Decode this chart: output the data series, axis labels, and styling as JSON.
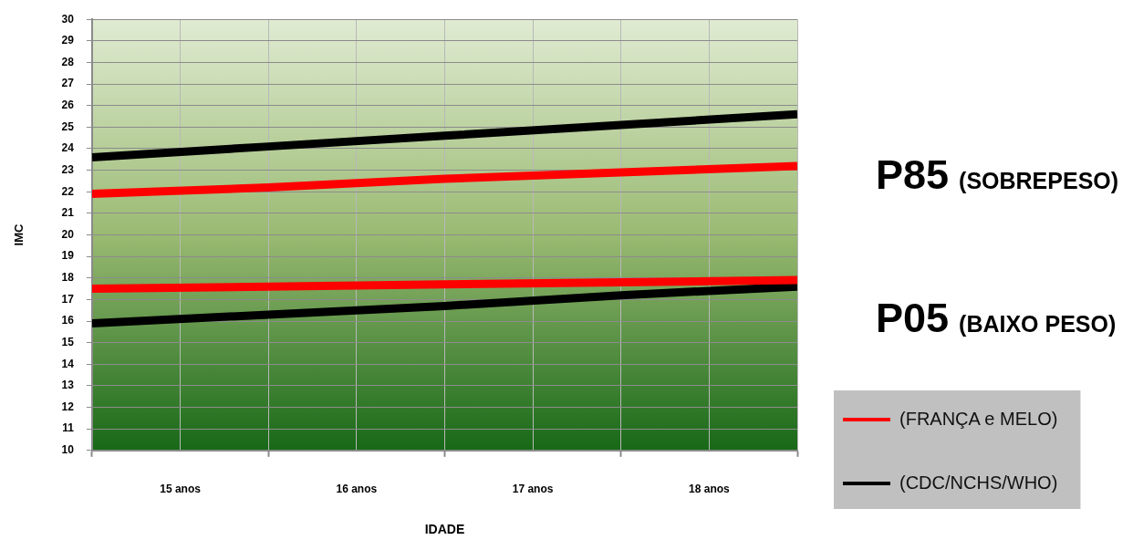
{
  "chart_data": {
    "type": "line",
    "xlabel": "IDADE",
    "ylabel": "IMC",
    "x": [
      14.5,
      15.5,
      16.5,
      17.5,
      18.5
    ],
    "xlim": [
      14.5,
      18.5
    ],
    "xticks": [
      {
        "value": 14.5,
        "label": null
      },
      {
        "value": 15,
        "label": "15 anos"
      },
      {
        "value": 15.5,
        "label": null
      },
      {
        "value": 16,
        "label": "16 anos"
      },
      {
        "value": 16.5,
        "label": null
      },
      {
        "value": 17,
        "label": "17 anos"
      },
      {
        "value": 17.5,
        "label": null
      },
      {
        "value": 18,
        "label": "18 anos"
      },
      {
        "value": 18.5,
        "label": null
      }
    ],
    "ylim": [
      10,
      30
    ],
    "yticks": [
      10,
      11,
      12,
      13,
      14,
      15,
      16,
      17,
      18,
      19,
      20,
      21,
      22,
      23,
      24,
      25,
      26,
      27,
      28,
      29,
      30
    ],
    "series": [
      {
        "name": "(FRANÇA e MELO)",
        "color": "#ff0000",
        "values": [
          21.9,
          22.2,
          22.6,
          22.9,
          23.2
        ]
      },
      {
        "color": "#ff0000",
        "values": [
          17.5,
          17.6,
          17.7,
          17.8,
          17.9
        ]
      },
      {
        "name": "(CDC/NCHS/WHO)",
        "color": "#000000",
        "values": [
          23.6,
          24.1,
          24.6,
          25.1,
          25.6
        ]
      },
      {
        "color": "#000000",
        "values": [
          15.9,
          16.3,
          16.7,
          17.2,
          17.6
        ]
      }
    ],
    "annotations": [
      "P85 (SOBREPESO)",
      "P05 (BAIXO PESO)"
    ],
    "grid": true,
    "legend": "bottom right",
    "marker": "none",
    "line_style": "solid"
  }
}
